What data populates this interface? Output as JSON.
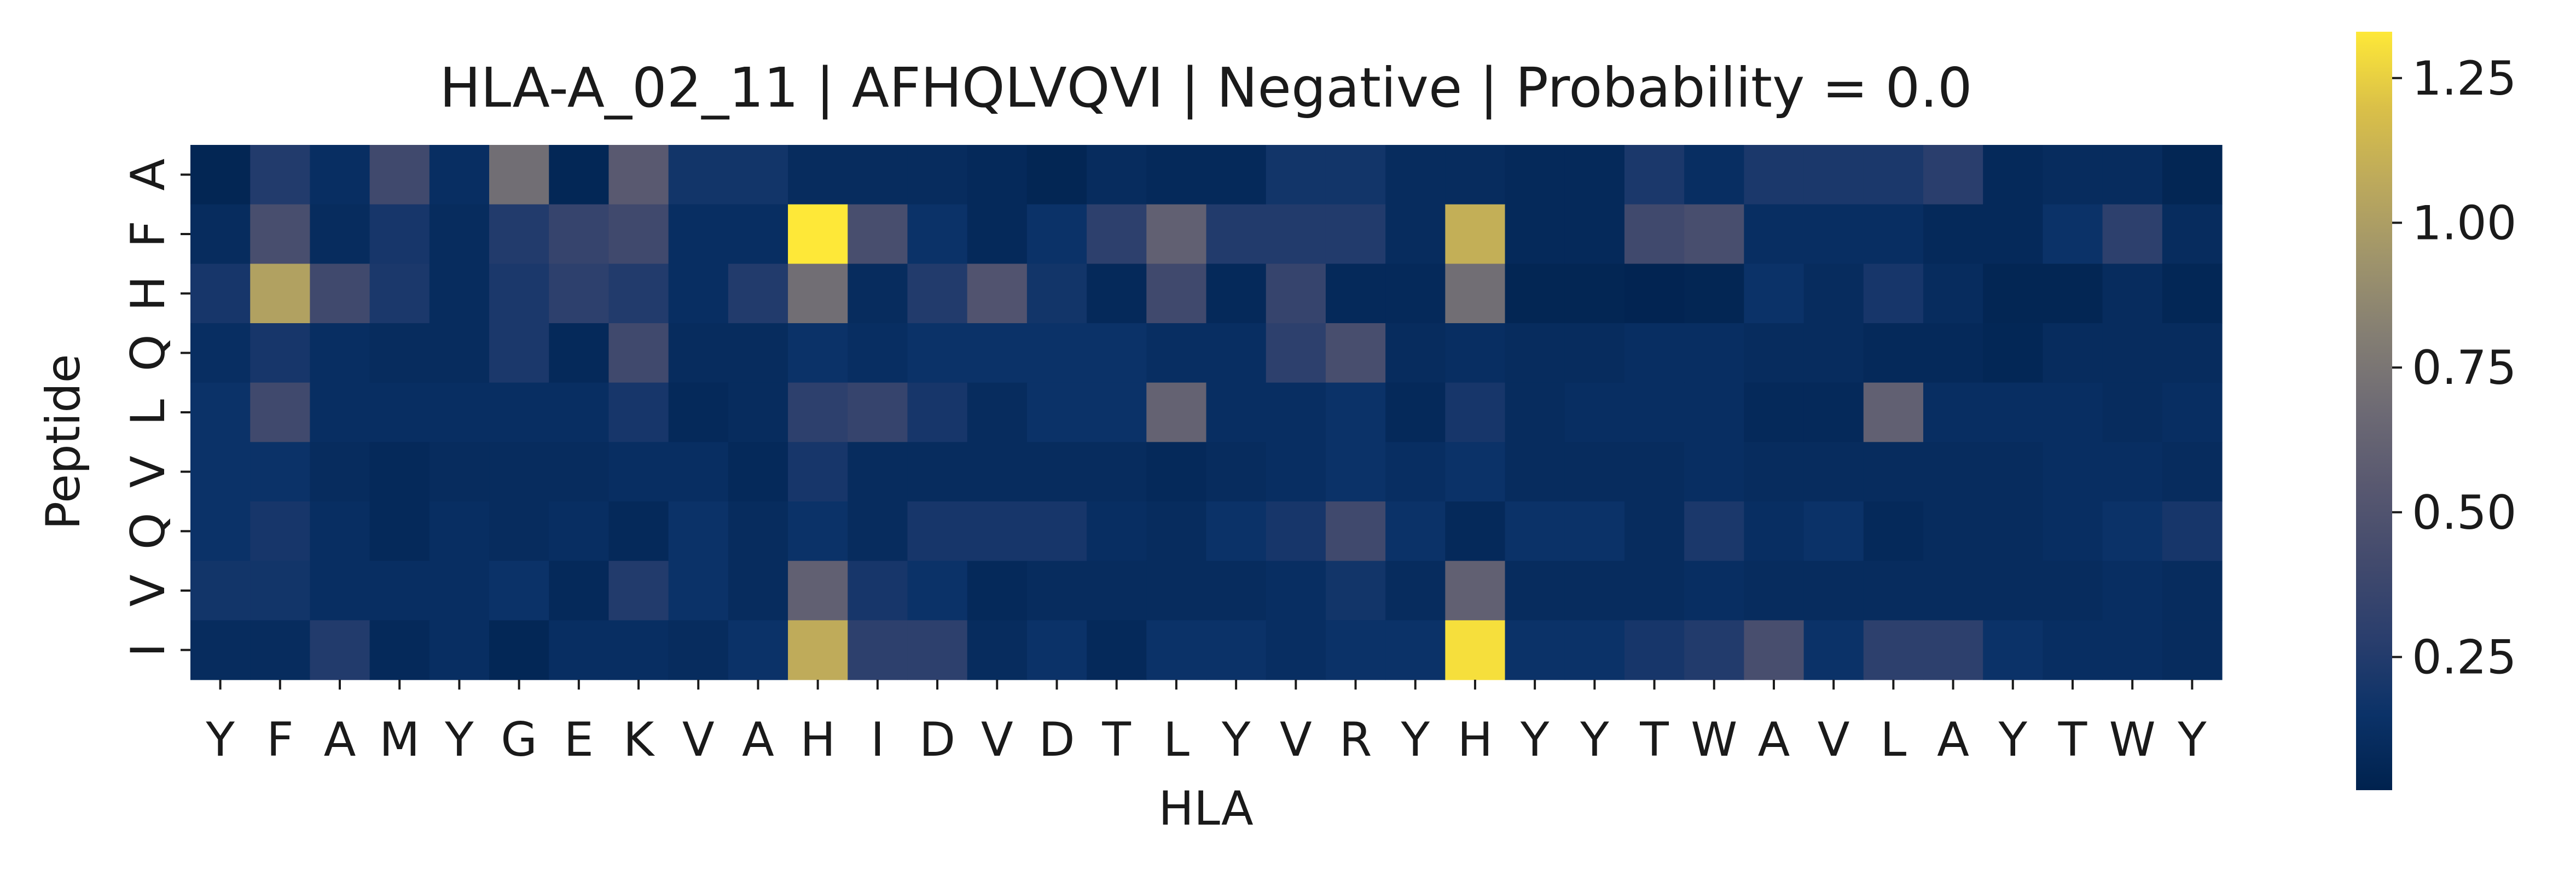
{
  "chart_data": {
    "type": "heatmap",
    "title": "HLA-A_02_11 | AFHQLVQVI | Negative | Probability = 0.0",
    "xlabel": "HLA",
    "ylabel": "Peptide",
    "x_labels": [
      "Y",
      "F",
      "A",
      "M",
      "Y",
      "G",
      "E",
      "K",
      "V",
      "A",
      "H",
      "I",
      "D",
      "V",
      "D",
      "T",
      "L",
      "Y",
      "V",
      "R",
      "Y",
      "H",
      "Y",
      "Y",
      "T",
      "W",
      "A",
      "V",
      "L",
      "A",
      "Y",
      "T",
      "W",
      "Y"
    ],
    "y_labels": [
      "A",
      "F",
      "H",
      "Q",
      "L",
      "V",
      "Q",
      "V",
      "I"
    ],
    "colormap": "cividis",
    "colorbar": {
      "range": [
        0.02,
        1.33
      ],
      "ticks": [
        0.25,
        0.5,
        0.75,
        1.0,
        1.25
      ],
      "tick_labels": [
        "0.25",
        "0.50",
        "0.75",
        "1.00",
        "1.25"
      ]
    },
    "values": [
      [
        0.05,
        0.25,
        0.12,
        0.4,
        0.12,
        0.7,
        0.06,
        0.55,
        0.18,
        0.18,
        0.1,
        0.1,
        0.1,
        0.08,
        0.05,
        0.1,
        0.08,
        0.08,
        0.18,
        0.18,
        0.1,
        0.1,
        0.08,
        0.08,
        0.22,
        0.12,
        0.22,
        0.22,
        0.22,
        0.28,
        0.08,
        0.1,
        0.1,
        0.05
      ],
      [
        0.1,
        0.45,
        0.1,
        0.2,
        0.1,
        0.25,
        0.35,
        0.4,
        0.12,
        0.12,
        1.33,
        0.45,
        0.15,
        0.08,
        0.15,
        0.3,
        0.6,
        0.25,
        0.25,
        0.25,
        0.1,
        1.1,
        0.08,
        0.08,
        0.4,
        0.45,
        0.12,
        0.12,
        0.12,
        0.08,
        0.08,
        0.15,
        0.3,
        0.1
      ],
      [
        0.2,
        1.02,
        0.4,
        0.22,
        0.1,
        0.22,
        0.3,
        0.25,
        0.12,
        0.25,
        0.7,
        0.1,
        0.25,
        0.5,
        0.18,
        0.08,
        0.4,
        0.08,
        0.35,
        0.08,
        0.08,
        0.7,
        0.05,
        0.05,
        0.04,
        0.05,
        0.15,
        0.1,
        0.2,
        0.1,
        0.05,
        0.05,
        0.1,
        0.06
      ],
      [
        0.12,
        0.2,
        0.12,
        0.1,
        0.1,
        0.22,
        0.08,
        0.4,
        0.1,
        0.1,
        0.15,
        0.12,
        0.15,
        0.15,
        0.15,
        0.15,
        0.12,
        0.12,
        0.3,
        0.45,
        0.1,
        0.12,
        0.1,
        0.1,
        0.12,
        0.12,
        0.1,
        0.1,
        0.08,
        0.08,
        0.06,
        0.1,
        0.1,
        0.1
      ],
      [
        0.15,
        0.4,
        0.12,
        0.12,
        0.12,
        0.12,
        0.12,
        0.2,
        0.08,
        0.1,
        0.3,
        0.35,
        0.2,
        0.1,
        0.15,
        0.15,
        0.62,
        0.12,
        0.12,
        0.15,
        0.08,
        0.2,
        0.1,
        0.12,
        0.12,
        0.12,
        0.08,
        0.08,
        0.6,
        0.12,
        0.12,
        0.12,
        0.1,
        0.12
      ],
      [
        0.15,
        0.15,
        0.1,
        0.08,
        0.1,
        0.1,
        0.1,
        0.12,
        0.12,
        0.08,
        0.2,
        0.1,
        0.1,
        0.1,
        0.1,
        0.1,
        0.08,
        0.1,
        0.12,
        0.15,
        0.12,
        0.15,
        0.1,
        0.1,
        0.1,
        0.12,
        0.1,
        0.1,
        0.1,
        0.1,
        0.1,
        0.12,
        0.12,
        0.1
      ],
      [
        0.15,
        0.2,
        0.12,
        0.08,
        0.12,
        0.1,
        0.12,
        0.08,
        0.15,
        0.1,
        0.15,
        0.1,
        0.2,
        0.2,
        0.2,
        0.12,
        0.1,
        0.15,
        0.2,
        0.4,
        0.15,
        0.08,
        0.15,
        0.15,
        0.1,
        0.22,
        0.12,
        0.15,
        0.08,
        0.1,
        0.1,
        0.12,
        0.15,
        0.2
      ],
      [
        0.18,
        0.18,
        0.12,
        0.12,
        0.12,
        0.15,
        0.08,
        0.25,
        0.15,
        0.1,
        0.6,
        0.2,
        0.15,
        0.08,
        0.1,
        0.1,
        0.1,
        0.1,
        0.12,
        0.18,
        0.1,
        0.6,
        0.1,
        0.1,
        0.1,
        0.12,
        0.1,
        0.1,
        0.1,
        0.1,
        0.1,
        0.1,
        0.12,
        0.1
      ],
      [
        0.1,
        0.1,
        0.25,
        0.08,
        0.12,
        0.06,
        0.12,
        0.12,
        0.1,
        0.15,
        1.08,
        0.3,
        0.3,
        0.1,
        0.15,
        0.08,
        0.15,
        0.15,
        0.12,
        0.15,
        0.15,
        1.3,
        0.15,
        0.15,
        0.2,
        0.25,
        0.45,
        0.15,
        0.3,
        0.3,
        0.15,
        0.12,
        0.12,
        0.1
      ]
    ]
  }
}
